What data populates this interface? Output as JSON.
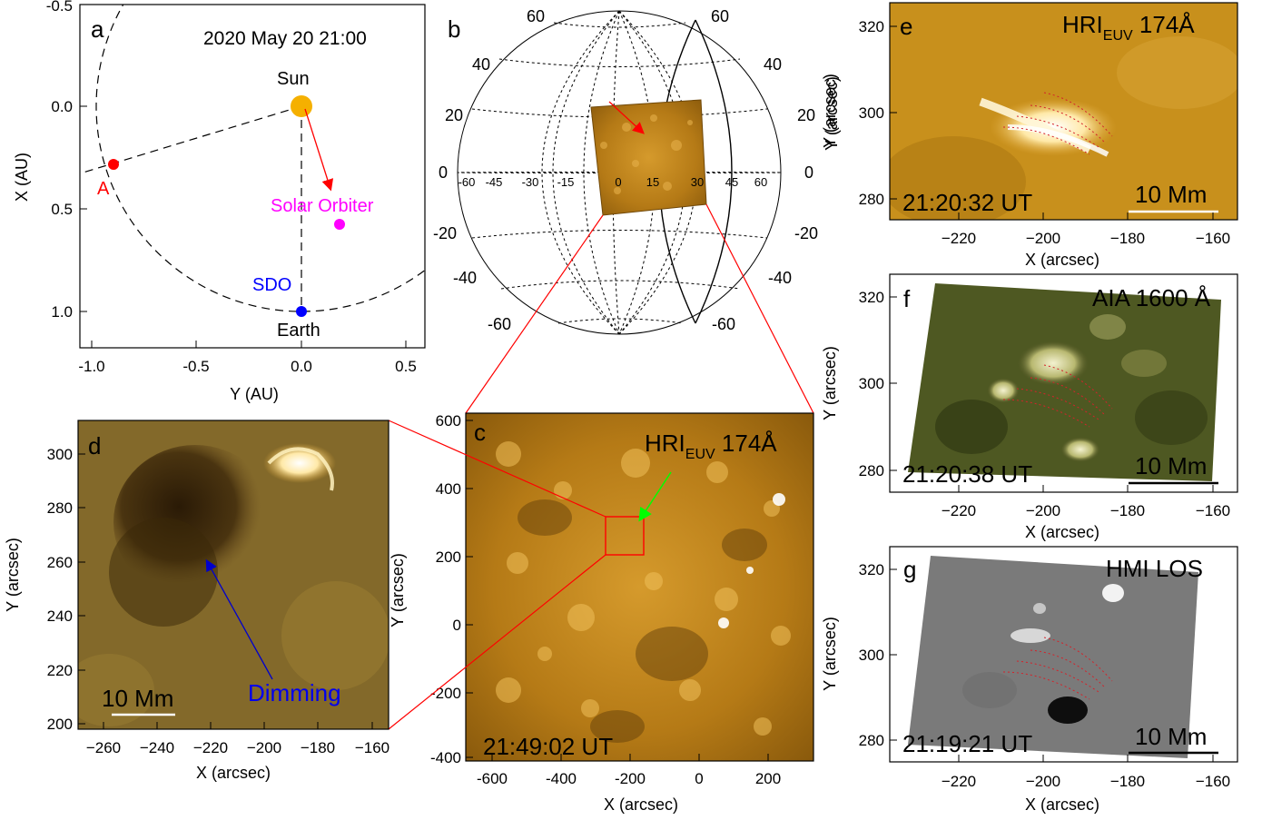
{
  "figure": {
    "panel_a": {
      "letter": "a",
      "date": "2020 May 20 21:00",
      "xlabel": "Y (AU)",
      "ylabel": "X (AU)",
      "xticks": [
        "-1.0",
        "-0.5",
        "0.0",
        "0.5"
      ],
      "yticks": [
        "-0.5",
        "0.0",
        "0.5",
        "1.0"
      ],
      "labels": {
        "sun": "Sun",
        "earth": "Earth",
        "sdo": "SDO",
        "orbiter": "Solar Orbiter",
        "a": "A"
      },
      "colors": {
        "sun": "#f5b000",
        "earth": "#0000ff",
        "orbiter": "#ff00ff",
        "a": "#ff0000"
      }
    },
    "panel_b": {
      "letter": "b",
      "lat_labels": [
        "60",
        "40",
        "20",
        "0",
        "-20",
        "-40",
        "-60"
      ],
      "lon_labels": [
        "-60",
        "-45",
        "-30",
        "-15",
        "0",
        "15",
        "30",
        "45",
        "60"
      ],
      "ylabel": "Y (arcsec)"
    },
    "panel_c": {
      "letter": "c",
      "instrument_main": "HRI",
      "instrument_sub": "EUV",
      "instrument_band": " 174Å",
      "time": "21:49:02 UT",
      "xlabel": "X (arcsec)",
      "ylabel": "Y (arcsec)",
      "xticks": [
        "-600",
        "-400",
        "-200",
        "0",
        "200"
      ],
      "yticks": [
        "600",
        "400",
        "200",
        "0",
        "-200",
        "-400"
      ]
    },
    "panel_d": {
      "letter": "d",
      "scale": "10 Mm",
      "annotation": "Dimming",
      "xlabel": "X (arcsec)",
      "ylabel": "Y (arcsec)",
      "xticks": [
        "−260",
        "−240",
        "−220",
        "−200",
        "−180",
        "−160"
      ],
      "yticks": [
        "300",
        "280",
        "260",
        "240",
        "220",
        "200"
      ]
    },
    "panel_e": {
      "letter": "e",
      "instrument_main": "HRI",
      "instrument_sub": "EUV",
      "instrument_band": " 174Å",
      "time": "21:20:32 UT",
      "scale": "10 Mm",
      "xlabel": "X (arcsec)",
      "ylabel": "Y (arcsec)",
      "xticks": [
        "−220",
        "−200",
        "−180",
        "−160"
      ],
      "yticks": [
        "320",
        "300",
        "280"
      ]
    },
    "panel_f": {
      "letter": "f",
      "instrument": "AIA 1600 Å",
      "time": "21:20:38 UT",
      "scale": "10 Mm",
      "xlabel": "X (arcsec)",
      "ylabel": "Y (arcsec)",
      "xticks": [
        "−220",
        "−200",
        "−180",
        "−160"
      ],
      "yticks": [
        "320",
        "300",
        "280"
      ]
    },
    "panel_g": {
      "letter": "g",
      "instrument": "HMI LOS",
      "time": "21:19:21 UT",
      "scale": "10 Mm",
      "xlabel": "X (arcsec)",
      "ylabel": "Y (arcsec)",
      "xticks": [
        "−220",
        "−200",
        "−180",
        "−160"
      ],
      "yticks": [
        "320",
        "300",
        "280"
      ]
    }
  }
}
